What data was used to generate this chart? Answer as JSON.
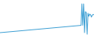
{
  "values": [
    30,
    31,
    32,
    33,
    34,
    35,
    36,
    37,
    38,
    39,
    40,
    41,
    42,
    43,
    44,
    45,
    46,
    47,
    48,
    49,
    50,
    51,
    52,
    53,
    54,
    55,
    56,
    57,
    58,
    59,
    60,
    61,
    62,
    63,
    64,
    65,
    66,
    67,
    68,
    69,
    70,
    71,
    72,
    73,
    74,
    75,
    76,
    77,
    78,
    79,
    80,
    81,
    82,
    83,
    84,
    85,
    86,
    87,
    88,
    89,
    90,
    91,
    92,
    93,
    94,
    95,
    96,
    97,
    98,
    99,
    100,
    101,
    102,
    103,
    104,
    105,
    106,
    107,
    108,
    109,
    110,
    111,
    112,
    113,
    114,
    115,
    116,
    117,
    118,
    119,
    120,
    121,
    122,
    123,
    124,
    400,
    125,
    400,
    30,
    300,
    290,
    10,
    280,
    240,
    270,
    260,
    230,
    255,
    265,
    260
  ],
  "line_color": "#3c9fd4",
  "linewidth": 0.7,
  "background_color": "#ffffff",
  "ylim_min": 0,
  "ylim_max": 450
}
